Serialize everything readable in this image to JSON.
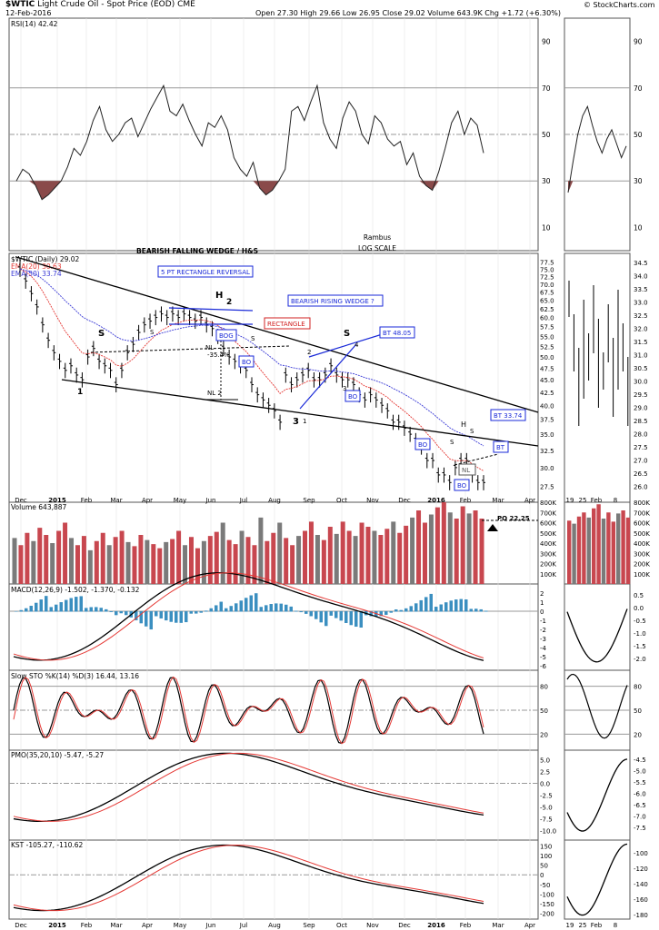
{
  "header": {
    "symbol": "$WTIC",
    "name": "Light Crude Oil - Spot Price (EOD)",
    "exchange": "CME",
    "date": "12-Feb-2016",
    "quote": "Open 27.30  High 29.66  Low 26.95  Close 29.02  Volume 643.9K  Chg +1.72 (+6.30%)",
    "credit": "© StockCharts.com"
  },
  "annotations": {
    "falling_wedge": "BEARISH FALLING WEDGE / H&S",
    "rect_reversal": "5 PT RECTANGLE REVERSAL",
    "rectangle": "RECTANGLE",
    "rising_wedge": "BEARISH RISING WEDGE ?",
    "bt4805": "BT 48.05",
    "bt3374": "BT 33.74",
    "bt": "BT",
    "bog": "BOG",
    "bo": "BO",
    "nl": "NL",
    "nl2": "NL 2",
    "pct": "-35.4%",
    "rambus": "Rambus",
    "logscale": "LOG SCALE",
    "h": "H",
    "s": "S",
    "one": "1",
    "two": "2",
    "three": "3",
    "four": "4",
    "po": "PO 22.25"
  },
  "chart_data": [
    {
      "type": "line",
      "title": "RSI(14) 42.42",
      "y_ticks": [
        "90",
        "70",
        "50",
        "30",
        "10"
      ],
      "ylim": [
        0,
        100
      ],
      "levels": [
        70,
        50,
        30
      ],
      "values": [
        30,
        35,
        33,
        28,
        22,
        24,
        27,
        30,
        36,
        44,
        41,
        47,
        56,
        62,
        52,
        47,
        50,
        55,
        57,
        49,
        55,
        61,
        66,
        71,
        60,
        58,
        63,
        56,
        50,
        45,
        55,
        53,
        58,
        52,
        40,
        35,
        32,
        38,
        27,
        24,
        26,
        30,
        35,
        60,
        62,
        56,
        64,
        71,
        55,
        48,
        44,
        57,
        64,
        60,
        50,
        46,
        58,
        55,
        48,
        45,
        47,
        37,
        42,
        32,
        28,
        26,
        34,
        44,
        55,
        60,
        50,
        57,
        54,
        42
      ],
      "inset_values": [
        25,
        38,
        50,
        58,
        62,
        54,
        47,
        42,
        48,
        52,
        46,
        40,
        45
      ]
    },
    {
      "type": "line",
      "title": "$WTIC (Daily) 29.02",
      "legend": [
        "EMA(20) 30.63",
        "EMA(50) 33.74"
      ],
      "y_ticks": [
        "77.5",
        "75.0",
        "72.5",
        "70.0",
        "67.5",
        "65.0",
        "62.5",
        "60.0",
        "57.5",
        "55.0",
        "52.5",
        "50.0",
        "47.5",
        "45.0",
        "42.5",
        "40.0",
        "37.5",
        "35.0",
        "32.5",
        "30.0",
        "27.5"
      ],
      "x_ticks": [
        "Dec",
        "2015",
        "Feb",
        "Mar",
        "Apr",
        "May",
        "Jun",
        "Jul",
        "Aug",
        "Sep",
        "Oct",
        "Nov",
        "Dec",
        "2016",
        "Feb",
        "Mar",
        "Apr"
      ],
      "scale": "log",
      "close": [
        75,
        71,
        67,
        63,
        58,
        54,
        51,
        49,
        47,
        48,
        46,
        45,
        50,
        52,
        49,
        48,
        47,
        44,
        47,
        51,
        53,
        56,
        58,
        59,
        60,
        61,
        60,
        61,
        60,
        61,
        60,
        59,
        60,
        58,
        57,
        55,
        52,
        50,
        49,
        48,
        47,
        44,
        42,
        41,
        40,
        39,
        37,
        46,
        44,
        45,
        46,
        47,
        45,
        45,
        46,
        48,
        46,
        45,
        45,
        44,
        42,
        41,
        42,
        41,
        40,
        39,
        37,
        37,
        36,
        35,
        34,
        33,
        31,
        31,
        29,
        29,
        28,
        30,
        31,
        31,
        29,
        28,
        28
      ],
      "y_range": [
        26,
        78
      ],
      "inset_y_ticks": [
        "34.5",
        "34.0",
        "33.5",
        "33.0",
        "32.5",
        "32.0",
        "31.5",
        "31.0",
        "30.5",
        "30.0",
        "29.5",
        "29.0",
        "28.5",
        "28.0",
        "27.5",
        "27.0",
        "26.5",
        "26.0"
      ],
      "inset_x_ticks": [
        "19",
        "25",
        "Feb",
        "8"
      ]
    },
    {
      "type": "bar",
      "title": "Volume 643,887",
      "y_ticks": [
        "800K",
        "700K",
        "600K",
        "500K",
        "400K",
        "300K",
        "200K",
        "100K"
      ],
      "ylim": [
        0,
        800
      ],
      "values_k": [
        450,
        380,
        500,
        420,
        550,
        480,
        400,
        520,
        600,
        450,
        380,
        470,
        330,
        420,
        500,
        380,
        460,
        520,
        410,
        370,
        480,
        430,
        390,
        350,
        410,
        440,
        520,
        380,
        460,
        350,
        420,
        470,
        510,
        600,
        430,
        390,
        520,
        460,
        380,
        650,
        420,
        500,
        600,
        450,
        380,
        470,
        520,
        610,
        480,
        430,
        560,
        490,
        610,
        520,
        470,
        600,
        560,
        520,
        480,
        540,
        610,
        500,
        570,
        650,
        720,
        600,
        680,
        750,
        800,
        700,
        640,
        760,
        690,
        720,
        640
      ],
      "inset_values_k": [
        620,
        590,
        660,
        700,
        650,
        740,
        780,
        640,
        700,
        610,
        690,
        720,
        650
      ]
    },
    {
      "type": "line",
      "title": "MACD(12,26,9) -1.502, -1.370, -0.132",
      "y_ticks": [
        "2",
        "1",
        "0",
        "-1",
        "-2",
        "-3",
        "-4",
        "-5",
        "-6"
      ],
      "ylim": [
        -6.5,
        3
      ],
      "inset_y_ticks": [
        "0.5",
        "0.0",
        "-0.5",
        "-1.0",
        "-1.5",
        "-2.0"
      ]
    },
    {
      "type": "line",
      "title": "Slow STO %K(14) %D(3) 16.44, 13.16",
      "y_ticks": [
        "80",
        "50",
        "20"
      ],
      "ylim": [
        0,
        100
      ]
    },
    {
      "type": "line",
      "title": "PMO(35,20,10) -5.47, -5.27",
      "y_ticks": [
        "5.0",
        "2.5",
        "0.0",
        "-2.5",
        "-5.0",
        "-7.5",
        "-10.0"
      ],
      "ylim": [
        -12,
        7
      ],
      "inset_y_ticks": [
        "-4.5",
        "-5.0",
        "-5.5",
        "-6.0",
        "-6.5",
        "-7.0",
        "-7.5"
      ]
    },
    {
      "type": "line",
      "title": "KST -105.27, -110.62",
      "y_ticks": [
        "150",
        "100",
        "50",
        "0",
        "-50",
        "-100",
        "-150",
        "-200"
      ],
      "ylim": [
        -230,
        180
      ],
      "inset_y_ticks": [
        "-100",
        "-120",
        "-140",
        "-160",
        "-180"
      ]
    }
  ],
  "colors": {
    "rsi_fill": "#8a4a4a",
    "ema20": "#e53935",
    "ema50": "#3b3bd6",
    "vol_up": "#7a7a7a",
    "vol_down": "#c8474f",
    "macd_hist": "#3b8fc0",
    "signal": "#e53935",
    "annot_blue": "#1a2ad8",
    "annot_red": "#d02020"
  }
}
